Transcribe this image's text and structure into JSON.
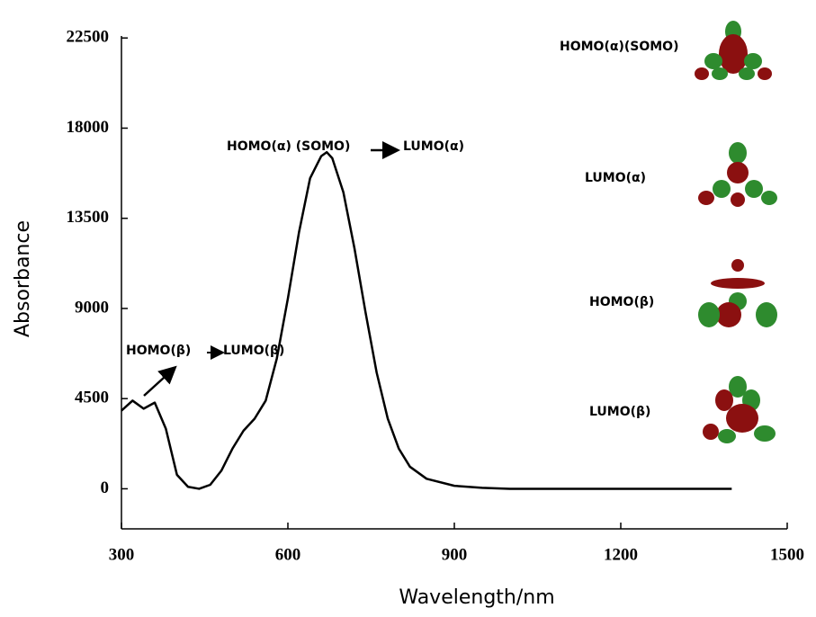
{
  "chart_data": {
    "type": "line",
    "x_label": "Wavelength/nm",
    "y_label": "Absorbance",
    "x": [
      300,
      320,
      340,
      360,
      380,
      400,
      420,
      440,
      460,
      480,
      500,
      520,
      540,
      560,
      580,
      600,
      620,
      640,
      660,
      670,
      680,
      700,
      720,
      740,
      760,
      780,
      800,
      820,
      850,
      900,
      950,
      1000,
      1200,
      1400
    ],
    "series": [
      {
        "name": "Absorbance",
        "color": "#000000",
        "values": [
          3900,
          4400,
          4000,
          4300,
          3000,
          700,
          100,
          0,
          200,
          900,
          2000,
          2900,
          3500,
          4400,
          6500,
          9500,
          12800,
          15500,
          16600,
          16800,
          16500,
          14800,
          12000,
          8800,
          5800,
          3500,
          2000,
          1100,
          500,
          150,
          50,
          0,
          0,
          0
        ]
      }
    ],
    "xlim": [
      300,
      1500
    ],
    "xticks": [
      300,
      600,
      900,
      1200,
      1500
    ],
    "ylim": [
      -2000,
      22600
    ],
    "yticks": [
      0,
      4500,
      9000,
      13500,
      18000,
      22500
    ],
    "annotations": [
      {
        "text": "HOMO(α) (SOMO)"
      },
      {
        "text": "LUMO(α)"
      },
      {
        "text": "HOMO(β)"
      },
      {
        "text": "LUMO(β)"
      },
      {
        "text": "HOMO(α)(SOMO)"
      },
      {
        "text": "LUMO(α)"
      },
      {
        "text": "HOMO(β)"
      },
      {
        "text": "LUMO(β)"
      }
    ]
  }
}
